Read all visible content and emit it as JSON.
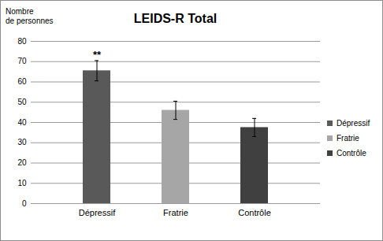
{
  "chart_data": {
    "type": "bar",
    "title": "LEIDS-R Total",
    "y_label": "Nombre\nde personnes",
    "categories": [
      "Dépressif",
      "Fratrie",
      "Contrôle"
    ],
    "values": [
      65.5,
      46,
      37.5
    ],
    "errors": [
      5,
      4.5,
      4.5
    ],
    "colors": [
      "#595959",
      "#a6a6a6",
      "#404040"
    ],
    "annotations": [
      {
        "category": "Dépressif",
        "text": "**"
      }
    ],
    "ylim": [
      0,
      80
    ],
    "yticks": [
      0,
      10,
      20,
      30,
      40,
      50,
      60,
      70,
      80
    ],
    "grid": true,
    "legend": "right"
  }
}
